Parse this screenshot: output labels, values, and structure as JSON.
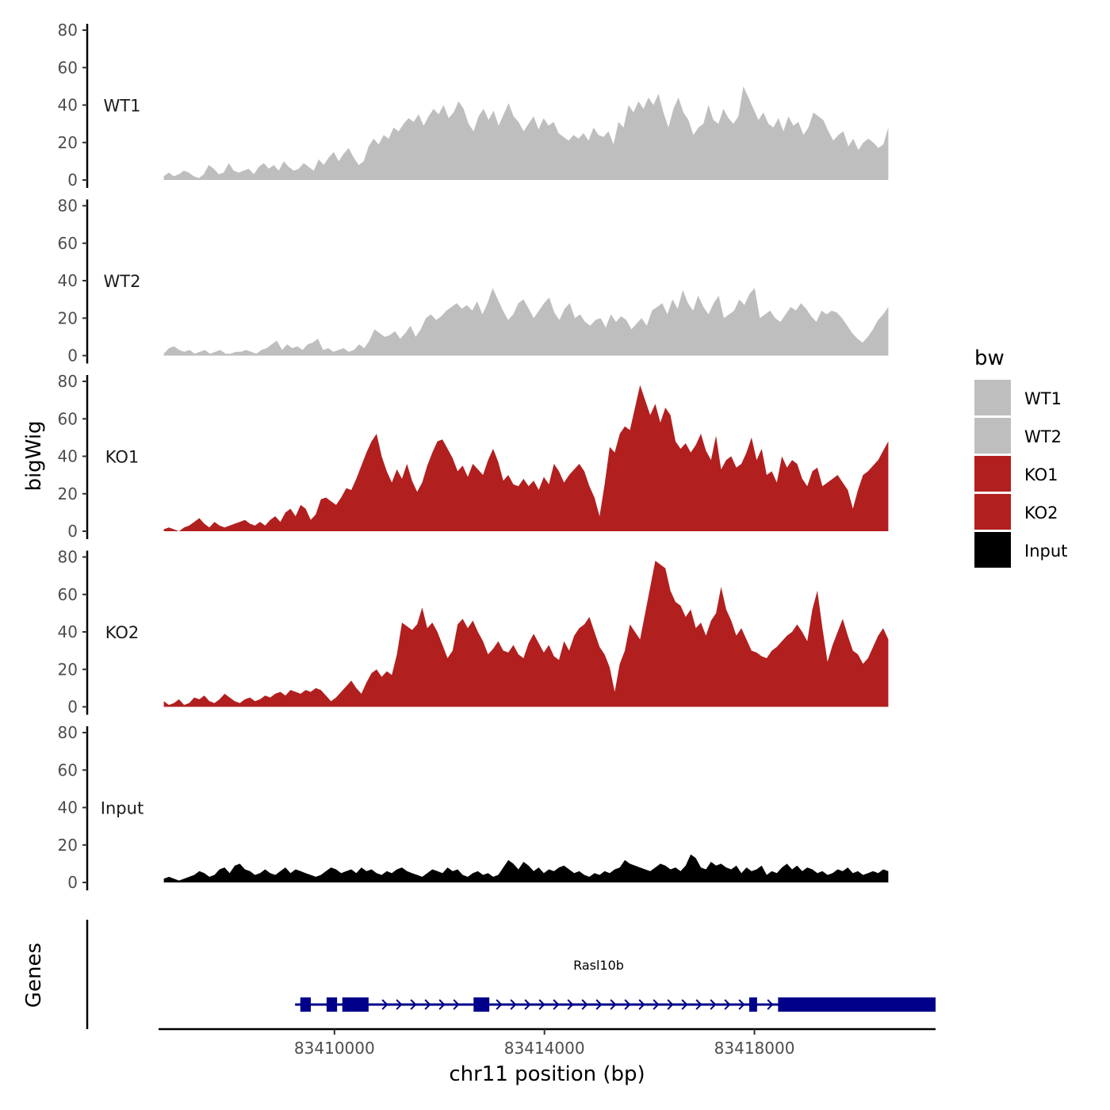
{
  "chart_data": {
    "type": "area",
    "title": "",
    "ylabel": "bigWig",
    "xlabel": "chr11 position (bp)",
    "gene_track_label": "Genes",
    "x_range": [
      83406650,
      83421450
    ],
    "x_ticks": [
      83410000,
      83414000,
      83418000
    ],
    "x_tick_labels": [
      "83410000",
      "83414000",
      "83418000"
    ],
    "ylim": [
      0,
      80
    ],
    "y_ticks": [
      0,
      20,
      40,
      60,
      80
    ],
    "y_tick_labels": [
      "0",
      "20",
      "40",
      "60",
      "80"
    ],
    "colors": {
      "WT": "#bebebe",
      "KO": "#b21f1f",
      "Input": "#000000",
      "gene": "#00008b"
    },
    "legend": {
      "title": "bw",
      "position": "right",
      "entries": [
        {
          "label": "WT1",
          "color": "#bebebe"
        },
        {
          "label": "WT2",
          "color": "#bebebe"
        },
        {
          "label": "KO1",
          "color": "#b21f1f"
        },
        {
          "label": "KO2",
          "color": "#b21f1f"
        },
        {
          "label": "Input",
          "color": "#000000"
        }
      ]
    },
    "series": [
      {
        "name": "WT1",
        "color": "#bebebe",
        "x_start": 83406750,
        "x_end": 83420550,
        "values": [
          2,
          4,
          2,
          3,
          5,
          4,
          2,
          1,
          3,
          8,
          6,
          3,
          4,
          9,
          5,
          4,
          5,
          6,
          3,
          7,
          9,
          6,
          8,
          5,
          10,
          7,
          5,
          6,
          9,
          7,
          5,
          11,
          8,
          12,
          15,
          10,
          14,
          17,
          12,
          8,
          10,
          18,
          22,
          19,
          24,
          22,
          28,
          26,
          30,
          33,
          31,
          35,
          29,
          34,
          38,
          35,
          40,
          33,
          36,
          42,
          38,
          30,
          26,
          34,
          38,
          32,
          37,
          29,
          35,
          41,
          34,
          31,
          26,
          30,
          34,
          27,
          33,
          29,
          31,
          25,
          23,
          21,
          24,
          22,
          25,
          21,
          28,
          24,
          23,
          26,
          19,
          31,
          28,
          40,
          36,
          42,
          38,
          44,
          40,
          46,
          36,
          28,
          38,
          44,
          36,
          32,
          24,
          28,
          30,
          40,
          32,
          30,
          38,
          33,
          30,
          34,
          50,
          44,
          38,
          32,
          36,
          30,
          28,
          33,
          26,
          34,
          29,
          31,
          24,
          28,
          36,
          34,
          32,
          26,
          21,
          24,
          26,
          18,
          22,
          16,
          20,
          22,
          20,
          17,
          19,
          28
        ]
      },
      {
        "name": "WT2",
        "color": "#bebebe",
        "x_start": 83406750,
        "x_end": 83420550,
        "values": [
          1,
          4,
          5,
          3,
          2,
          3,
          1,
          2,
          3,
          1,
          2,
          3,
          1,
          1,
          2,
          2,
          3,
          2,
          1,
          3,
          4,
          6,
          8,
          3,
          6,
          4,
          5,
          3,
          6,
          7,
          9,
          3,
          4,
          2,
          3,
          4,
          2,
          3,
          6,
          4,
          8,
          14,
          12,
          10,
          11,
          13,
          9,
          12,
          16,
          10,
          14,
          20,
          22,
          19,
          21,
          24,
          26,
          28,
          25,
          27,
          24,
          29,
          22,
          28,
          36,
          30,
          24,
          19,
          22,
          28,
          30,
          25,
          20,
          24,
          28,
          31,
          23,
          19,
          25,
          28,
          20,
          22,
          18,
          16,
          19,
          20,
          15,
          22,
          18,
          21,
          19,
          14,
          17,
          20,
          16,
          24,
          26,
          28,
          22,
          30,
          25,
          35,
          28,
          24,
          32,
          26,
          22,
          28,
          32,
          20,
          22,
          24,
          30,
          27,
          33,
          36,
          20,
          22,
          24,
          20,
          18,
          22,
          26,
          24,
          28,
          25,
          21,
          18,
          24,
          22,
          24,
          23,
          20,
          16,
          12,
          9,
          7,
          10,
          14,
          19,
          22,
          26
        ]
      },
      {
        "name": "KO1",
        "color": "#b21f1f",
        "x_start": 83406750,
        "x_end": 83420550,
        "values": [
          1,
          2,
          1,
          0,
          2,
          3,
          5,
          7,
          4,
          2,
          5,
          3,
          2,
          3,
          4,
          5,
          6,
          4,
          3,
          5,
          3,
          6,
          8,
          5,
          10,
          12,
          8,
          14,
          12,
          6,
          9,
          17,
          18,
          16,
          14,
          18,
          23,
          22,
          28,
          35,
          42,
          48,
          52,
          40,
          32,
          26,
          33,
          28,
          36,
          27,
          21,
          26,
          35,
          42,
          48,
          49,
          44,
          39,
          32,
          35,
          29,
          36,
          33,
          30,
          38,
          44,
          37,
          27,
          30,
          25,
          24,
          28,
          24,
          27,
          22,
          29,
          25,
          36,
          32,
          26,
          30,
          33,
          36,
          32,
          24,
          18,
          8,
          25,
          45,
          42,
          52,
          56,
          54,
          66,
          78,
          70,
          62,
          68,
          58,
          66,
          62,
          48,
          44,
          47,
          42,
          46,
          52,
          43,
          38,
          51,
          33,
          38,
          40,
          34,
          36,
          42,
          50,
          38,
          44,
          30,
          32,
          26,
          40,
          34,
          38,
          36,
          28,
          24,
          32,
          34,
          24,
          26,
          28,
          30,
          26,
          22,
          12,
          22,
          30,
          32,
          35,
          38,
          43,
          48
        ]
      },
      {
        "name": "KO2",
        "color": "#b21f1f",
        "x_start": 83406750,
        "x_end": 83420550,
        "values": [
          3,
          1,
          2,
          4,
          1,
          2,
          5,
          4,
          6,
          3,
          2,
          4,
          7,
          5,
          3,
          2,
          4,
          5,
          3,
          4,
          6,
          5,
          7,
          8,
          6,
          9,
          8,
          7,
          9,
          8,
          10,
          9,
          6,
          3,
          5,
          8,
          11,
          14,
          10,
          7,
          13,
          18,
          20,
          16,
          19,
          17,
          28,
          45,
          43,
          41,
          44,
          53,
          42,
          45,
          40,
          33,
          26,
          30,
          44,
          47,
          42,
          46,
          40,
          35,
          28,
          31,
          35,
          30,
          29,
          33,
          28,
          26,
          34,
          39,
          34,
          29,
          33,
          27,
          25,
          35,
          30,
          38,
          42,
          44,
          48,
          40,
          32,
          28,
          21,
          8,
          23,
          30,
          44,
          40,
          36,
          50,
          64,
          78,
          76,
          74,
          62,
          56,
          54,
          48,
          52,
          42,
          45,
          38,
          46,
          50,
          64,
          52,
          46,
          38,
          42,
          36,
          30,
          29,
          27,
          26,
          30,
          32,
          35,
          38,
          40,
          44,
          40,
          35,
          52,
          62,
          42,
          24,
          33,
          40,
          47,
          38,
          30,
          28,
          23,
          26,
          32,
          38,
          42,
          36
        ]
      },
      {
        "name": "Input",
        "color": "#000000",
        "x_start": 83406750,
        "x_end": 83420550,
        "values": [
          2,
          3,
          2,
          1,
          2,
          3,
          4,
          6,
          5,
          3,
          4,
          7,
          8,
          5,
          9,
          10,
          7,
          6,
          4,
          5,
          7,
          5,
          4,
          6,
          8,
          5,
          7,
          6,
          5,
          4,
          3,
          4,
          6,
          8,
          7,
          5,
          6,
          7,
          5,
          8,
          6,
          7,
          5,
          4,
          6,
          5,
          7,
          8,
          6,
          5,
          4,
          3,
          5,
          7,
          6,
          5,
          8,
          6,
          7,
          4,
          3,
          5,
          6,
          4,
          5,
          3,
          4,
          8,
          12,
          10,
          7,
          11,
          9,
          6,
          8,
          5,
          7,
          6,
          8,
          9,
          7,
          5,
          6,
          4,
          3,
          5,
          4,
          6,
          5,
          7,
          8,
          12,
          10,
          9,
          8,
          7,
          6,
          8,
          10,
          9,
          7,
          8,
          6,
          9,
          15,
          13,
          8,
          7,
          11,
          9,
          10,
          8,
          7,
          9,
          5,
          8,
          6,
          7,
          9,
          4,
          6,
          5,
          8,
          10,
          7,
          9,
          6,
          8,
          7,
          5,
          6,
          4,
          5,
          7,
          6,
          8,
          5,
          6,
          4,
          5,
          6,
          5,
          7,
          6
        ]
      }
    ],
    "gene": {
      "name": "Rasl10b",
      "strand": "+",
      "tx_start": 83409250,
      "tx_end": 83421450,
      "exons": [
        {
          "start": 83409350,
          "end": 83409550,
          "thick": true
        },
        {
          "start": 83409850,
          "end": 83410050,
          "thick": true
        },
        {
          "start": 83410150,
          "end": 83410650,
          "thick": true
        },
        {
          "start": 83412650,
          "end": 83412950,
          "thick": true
        },
        {
          "start": 83417900,
          "end": 83418050,
          "thick": true
        },
        {
          "start": 83418450,
          "end": 83421450,
          "thick": true
        }
      ]
    }
  }
}
